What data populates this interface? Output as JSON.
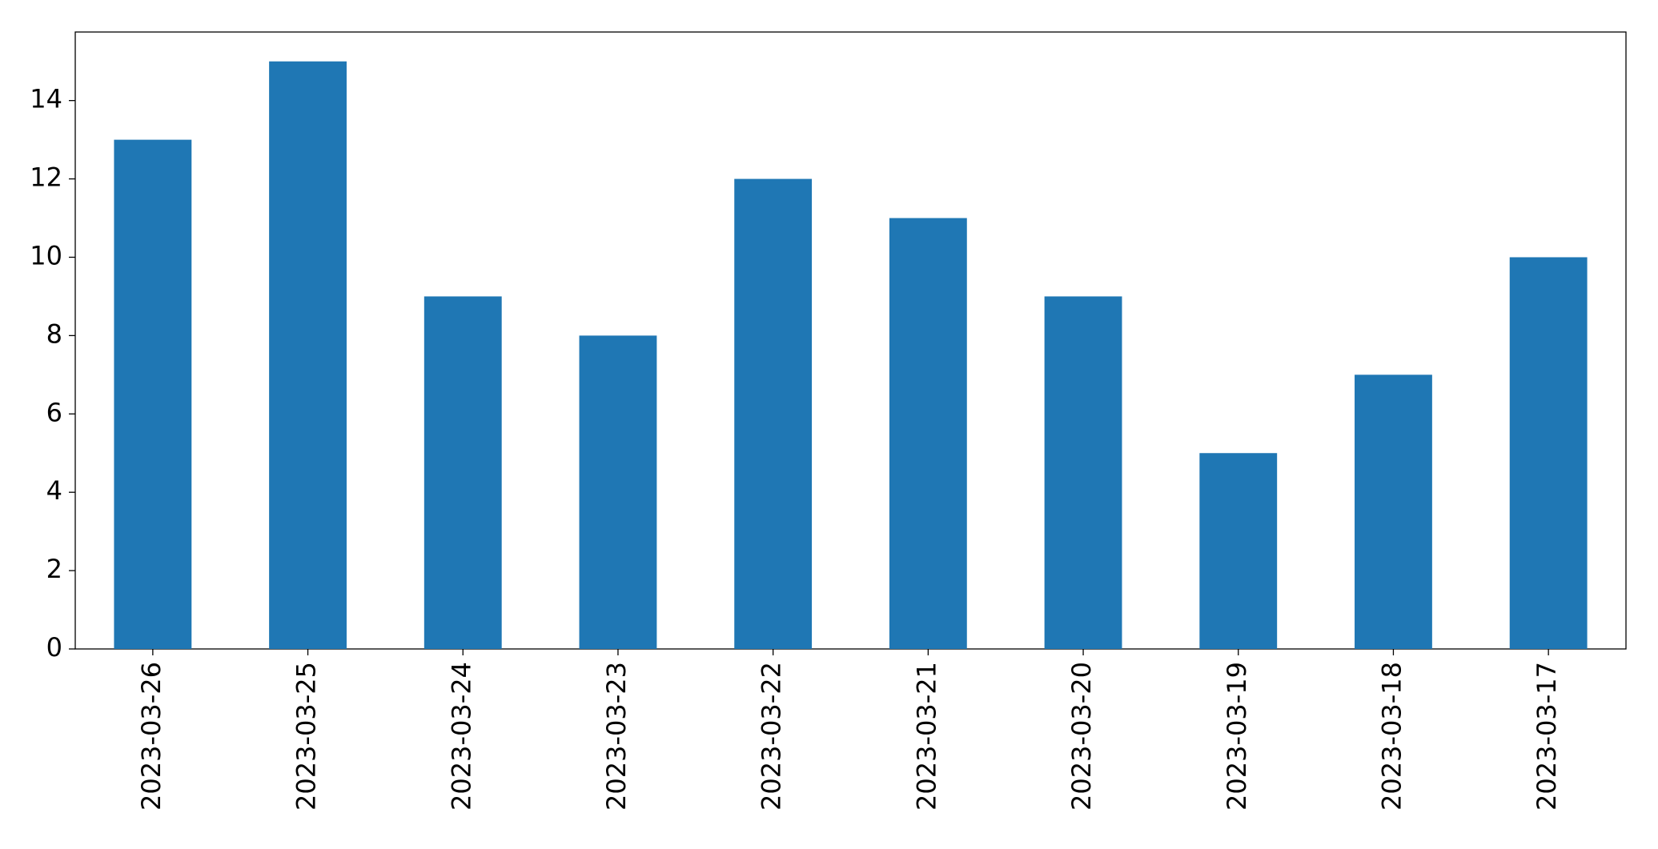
{
  "chart_data": {
    "type": "bar",
    "categories": [
      "2023-03-26",
      "2023-03-25",
      "2023-03-24",
      "2023-03-23",
      "2023-03-22",
      "2023-03-21",
      "2023-03-20",
      "2023-03-19",
      "2023-03-18",
      "2023-03-17"
    ],
    "values": [
      13,
      15,
      9,
      8,
      12,
      11,
      9,
      5,
      7,
      10
    ],
    "color": "#1f77b4",
    "ylim": [
      0,
      15.75
    ],
    "yticks": [
      0,
      2,
      4,
      6,
      8,
      10,
      12,
      14
    ],
    "grid": false
  }
}
